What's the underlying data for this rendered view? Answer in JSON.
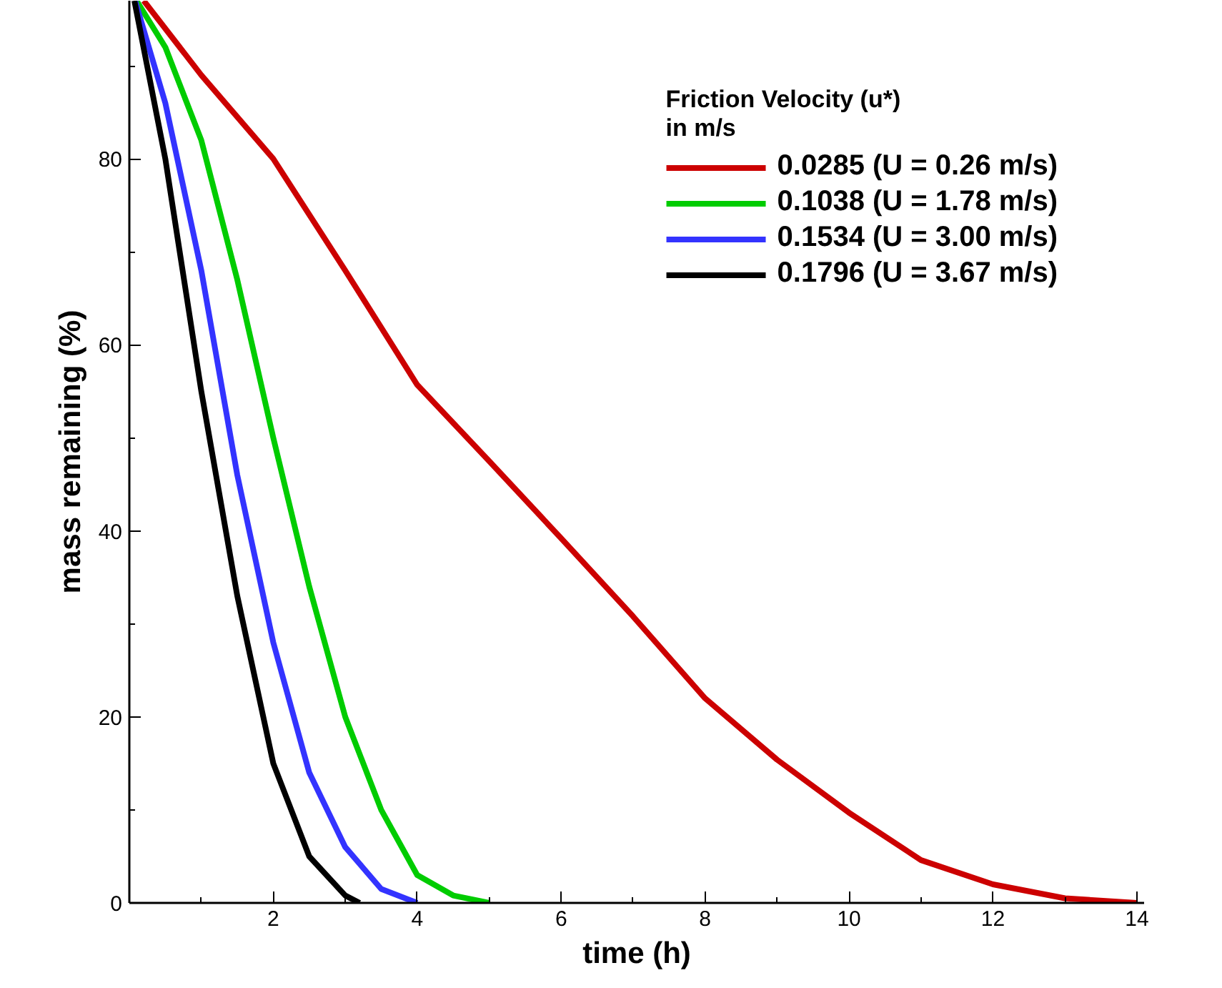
{
  "chart_data": {
    "type": "line",
    "xlabel": "time (h)",
    "ylabel": "mass remaining (%)",
    "legend_title": "Friction Velocity (u*)\nin m/s",
    "xlim": [
      0,
      14.1
    ],
    "ylim": [
      0,
      97
    ],
    "xticks": [
      {
        "value": 1,
        "label": null
      },
      2,
      {
        "value": 3,
        "label": null
      },
      4,
      {
        "value": 5,
        "label": null
      },
      6,
      {
        "value": 7,
        "label": null
      },
      8,
      {
        "value": 9,
        "label": null
      },
      10,
      {
        "value": 11,
        "label": null
      },
      12,
      {
        "value": 13,
        "label": null
      },
      14
    ],
    "yticks": [
      0,
      {
        "value": 10,
        "label": null
      },
      20,
      {
        "value": 30,
        "label": null
      },
      40,
      {
        "value": 50,
        "label": null
      },
      60,
      {
        "value": 70,
        "label": null
      },
      80,
      {
        "value": 90,
        "label": null
      }
    ],
    "grid": false,
    "legend": "top right",
    "line_style": "solid",
    "marker": "none",
    "series": [
      {
        "name": "0.0285 (U = 0.26 m/s)",
        "color": "#cc0000",
        "x": [
          0.2,
          1,
          2,
          3,
          4,
          5,
          6,
          7,
          8,
          9,
          10,
          11,
          12,
          13,
          14
        ],
        "values": [
          97,
          89,
          80,
          68,
          55.7,
          47.5,
          39.2,
          30.8,
          22,
          15.4,
          9.7,
          4.6,
          2,
          0.5,
          0
        ]
      },
      {
        "name": "0.1038 (U = 1.78 m/s)",
        "color": "#00cc00",
        "x": [
          0.1,
          0.5,
          1,
          1.5,
          2,
          2.5,
          3,
          3.5,
          4,
          4.5,
          5
        ],
        "values": [
          97,
          92,
          82,
          67,
          50,
          34,
          20,
          10,
          3,
          0.8,
          0
        ]
      },
      {
        "name": "0.1534 (U = 3.00 m/s)",
        "color": "#3333ff",
        "x": [
          0.08,
          0.5,
          1,
          1.5,
          2,
          2.5,
          3,
          3.5,
          4
        ],
        "values": [
          97,
          86,
          68,
          46,
          28,
          14,
          6,
          1.5,
          0
        ]
      },
      {
        "name": "0.1796 (U = 3.67 m/s)",
        "color": "#000000",
        "x": [
          0.07,
          0.5,
          1,
          1.5,
          2,
          2.5,
          3,
          3.2
        ],
        "values": [
          97,
          80,
          55,
          33,
          15,
          5,
          0.8,
          0
        ]
      }
    ]
  }
}
